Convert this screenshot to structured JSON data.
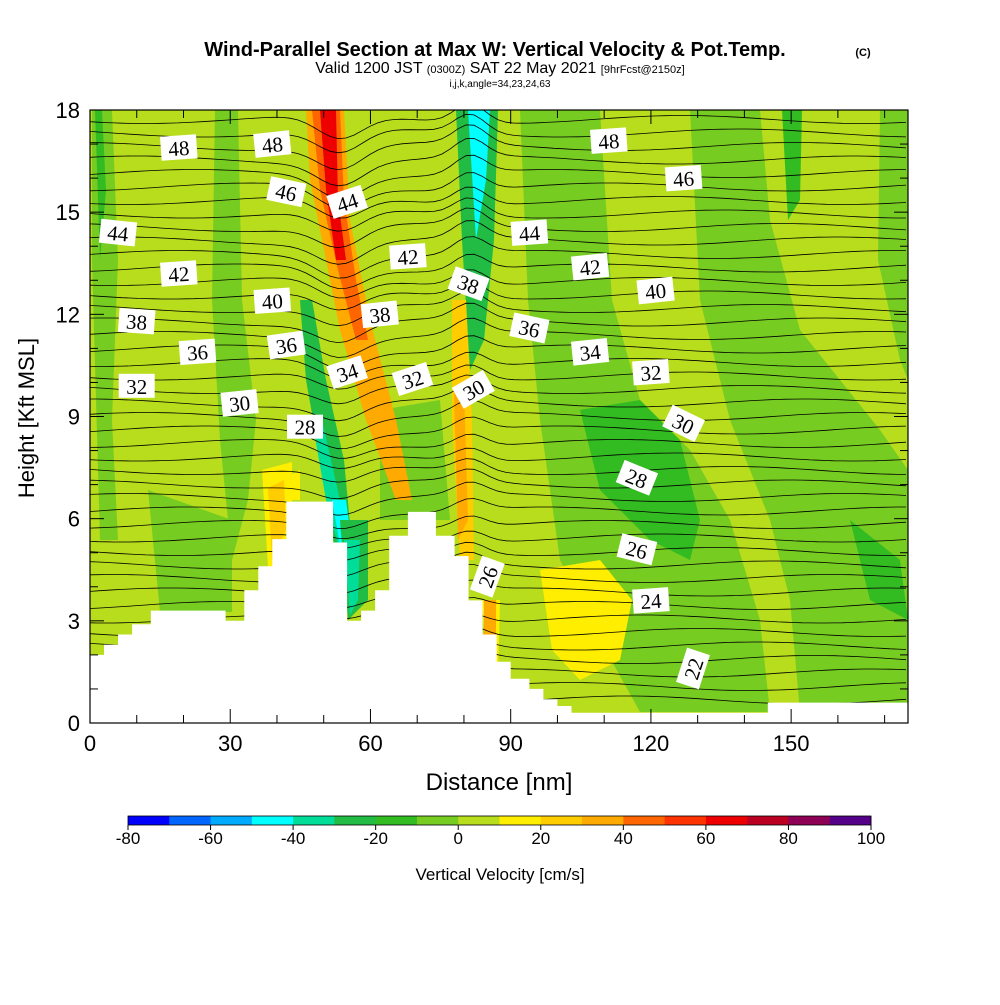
{
  "header": {
    "title": "Wind-Parallel Section at Max W: Vertical Velocity & Pot.Temp.",
    "copyright": "(C)",
    "valid_prefix": "Valid 1200 JST",
    "valid_utc": "(0300Z)",
    "valid_date": "SAT 22 May 2021",
    "forecast": "[9hrFcst@2150z]",
    "indices": "i,j,k,angle=34,23,24,63"
  },
  "chart_data": {
    "type": "heatmap",
    "xlabel": "Distance [nm]",
    "ylabel": "Height [Kft MSL]",
    "xlim": [
      0,
      175
    ],
    "ylim": [
      0,
      18
    ],
    "x_ticks": [
      0,
      30,
      60,
      90,
      120,
      150
    ],
    "y_ticks": [
      0,
      3,
      6,
      9,
      12,
      15,
      18
    ],
    "terrain_profile": [
      [
        0,
        2.0
      ],
      [
        3,
        2.0
      ],
      [
        3,
        2.3
      ],
      [
        6,
        2.3
      ],
      [
        6,
        2.6
      ],
      [
        9,
        2.6
      ],
      [
        9,
        2.9
      ],
      [
        13,
        2.9
      ],
      [
        13,
        3.3
      ],
      [
        29,
        3.3
      ],
      [
        29,
        3.0
      ],
      [
        33,
        3.0
      ],
      [
        33,
        3.9
      ],
      [
        36,
        3.9
      ],
      [
        36,
        4.6
      ],
      [
        39,
        4.6
      ],
      [
        39,
        5.4
      ],
      [
        42,
        5.4
      ],
      [
        42,
        6.5
      ],
      [
        52,
        6.5
      ],
      [
        52,
        5.3
      ],
      [
        55,
        5.3
      ],
      [
        55,
        3.0
      ],
      [
        58,
        3.0
      ],
      [
        58,
        3.3
      ],
      [
        61,
        3.3
      ],
      [
        61,
        3.9
      ],
      [
        64,
        3.9
      ],
      [
        64,
        5.5
      ],
      [
        68,
        5.5
      ],
      [
        68,
        6.2
      ],
      [
        74,
        6.2
      ],
      [
        74,
        5.5
      ],
      [
        78,
        5.5
      ],
      [
        78,
        4.9
      ],
      [
        81,
        4.9
      ],
      [
        81,
        3.6
      ],
      [
        84,
        3.6
      ],
      [
        84,
        2.6
      ],
      [
        87,
        2.6
      ],
      [
        87,
        1.8
      ],
      [
        90,
        1.8
      ],
      [
        90,
        1.3
      ],
      [
        94,
        1.3
      ],
      [
        94,
        1.0
      ],
      [
        97,
        1.0
      ],
      [
        97,
        0.7
      ],
      [
        100,
        0.7
      ],
      [
        100,
        0.5
      ],
      [
        103,
        0.5
      ],
      [
        103,
        0.3
      ],
      [
        145,
        0.3
      ],
      [
        145,
        0.6
      ],
      [
        175,
        0.6
      ]
    ],
    "isentrope_labels": [
      {
        "value": "48",
        "x": 19,
        "y": 16.9,
        "angle": -4
      },
      {
        "value": "48",
        "x": 39,
        "y": 17.0,
        "angle": -6
      },
      {
        "value": "48",
        "x": 111,
        "y": 17.1,
        "angle": -4
      },
      {
        "value": "46",
        "x": 42,
        "y": 15.6,
        "angle": 12
      },
      {
        "value": "46",
        "x": 127,
        "y": 16.0,
        "angle": -4
      },
      {
        "value": "44",
        "x": 6,
        "y": 14.4,
        "angle": 6
      },
      {
        "value": "44",
        "x": 55,
        "y": 15.3,
        "angle": -18
      },
      {
        "value": "44",
        "x": 94,
        "y": 14.4,
        "angle": -4
      },
      {
        "value": "42",
        "x": 19,
        "y": 13.2,
        "angle": -4
      },
      {
        "value": "42",
        "x": 68,
        "y": 13.7,
        "angle": -4
      },
      {
        "value": "42",
        "x": 107,
        "y": 13.4,
        "angle": -6
      },
      {
        "value": "40",
        "x": 39,
        "y": 12.4,
        "angle": -4
      },
      {
        "value": "40",
        "x": 121,
        "y": 12.7,
        "angle": -6
      },
      {
        "value": "38",
        "x": 10,
        "y": 11.8,
        "angle": 4
      },
      {
        "value": "38",
        "x": 62,
        "y": 12.0,
        "angle": -6
      },
      {
        "value": "38",
        "x": 81,
        "y": 12.9,
        "angle": 20
      },
      {
        "value": "36",
        "x": 23,
        "y": 10.9,
        "angle": -4
      },
      {
        "value": "36",
        "x": 42,
        "y": 11.1,
        "angle": -8
      },
      {
        "value": "36",
        "x": 94,
        "y": 11.6,
        "angle": 12
      },
      {
        "value": "34",
        "x": 55,
        "y": 10.3,
        "angle": -18
      },
      {
        "value": "34",
        "x": 107,
        "y": 10.9,
        "angle": -6
      },
      {
        "value": "32",
        "x": 10,
        "y": 9.9,
        "angle": 0
      },
      {
        "value": "32",
        "x": 69,
        "y": 10.1,
        "angle": -18
      },
      {
        "value": "32",
        "x": 120,
        "y": 10.3,
        "angle": -4
      },
      {
        "value": "30",
        "x": 32,
        "y": 9.4,
        "angle": -6
      },
      {
        "value": "30",
        "x": 82,
        "y": 9.8,
        "angle": -30
      },
      {
        "value": "30",
        "x": 127,
        "y": 8.8,
        "angle": 26
      },
      {
        "value": "28",
        "x": 46,
        "y": 8.7,
        "angle": 0
      },
      {
        "value": "28",
        "x": 117,
        "y": 7.2,
        "angle": 22
      },
      {
        "value": "26",
        "x": 85,
        "y": 4.3,
        "angle": -70
      },
      {
        "value": "26",
        "x": 117,
        "y": 5.1,
        "angle": 14
      },
      {
        "value": "24",
        "x": 120,
        "y": 3.6,
        "angle": -4
      },
      {
        "value": "22",
        "x": 129,
        "y": 1.6,
        "angle": -72
      }
    ]
  },
  "colorbar": {
    "label": "Vertical Velocity [cm/s]",
    "tick_labels": [
      "-80",
      "-60",
      "-40",
      "-20",
      "0",
      "20",
      "40",
      "60",
      "80",
      "100"
    ],
    "colors": [
      "#0000ff",
      "#0066ff",
      "#00aaff",
      "#00ffff",
      "#00dd99",
      "#22bb44",
      "#33bb22",
      "#77cc22",
      "#b8dd1c",
      "#ffee00",
      "#ffcc00",
      "#ffaa00",
      "#ff6600",
      "#ff3300",
      "#ee0000",
      "#bb0022",
      "#8e0055",
      "#550088"
    ]
  }
}
